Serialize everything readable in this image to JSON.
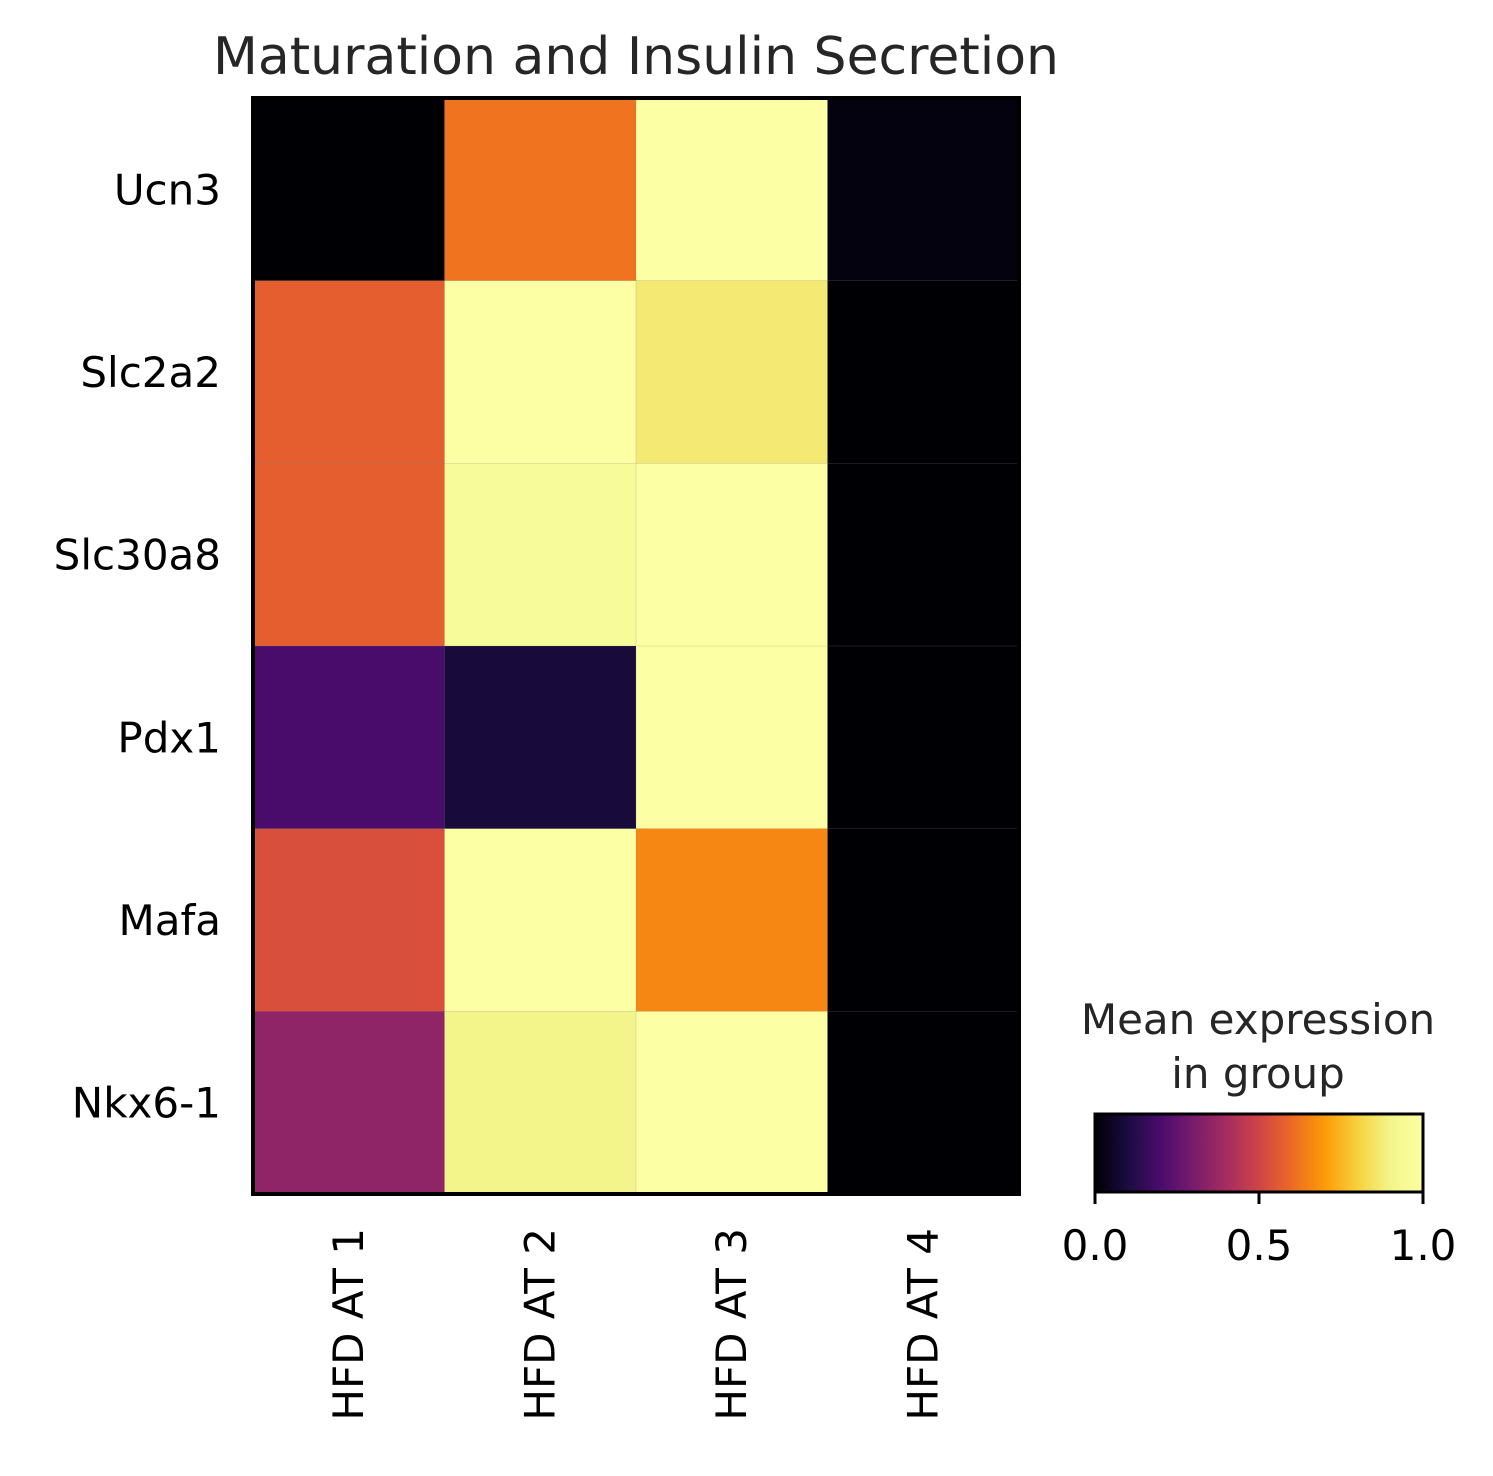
{
  "chart_data": {
    "type": "heatmap",
    "title": "Maturation and Insulin Secretion",
    "rows": [
      "Ucn3",
      "Slc2a2",
      "Slc30a8",
      "Pdx1",
      "Mafa",
      "Nkx6-1"
    ],
    "columns": [
      "HFD AT 1",
      "HFD AT 2",
      "HFD AT 3",
      "HFD AT 4"
    ],
    "values": [
      [
        0.0,
        0.62,
        1.0,
        0.02
      ],
      [
        0.57,
        1.0,
        0.87,
        0.0
      ],
      [
        0.57,
        0.96,
        1.0,
        0.0
      ],
      [
        0.2,
        0.09,
        1.0,
        0.0
      ],
      [
        0.53,
        1.0,
        0.66,
        0.0
      ],
      [
        0.35,
        0.9,
        1.0,
        0.0
      ]
    ],
    "colormap": "inferno",
    "colorbar": {
      "title_line1": "Mean expression",
      "title_line2": "in group",
      "range": [
        0,
        1
      ],
      "ticks": [
        "0.0",
        "0.5",
        "1.0"
      ],
      "tick_values": [
        0,
        0.5,
        1
      ]
    }
  }
}
